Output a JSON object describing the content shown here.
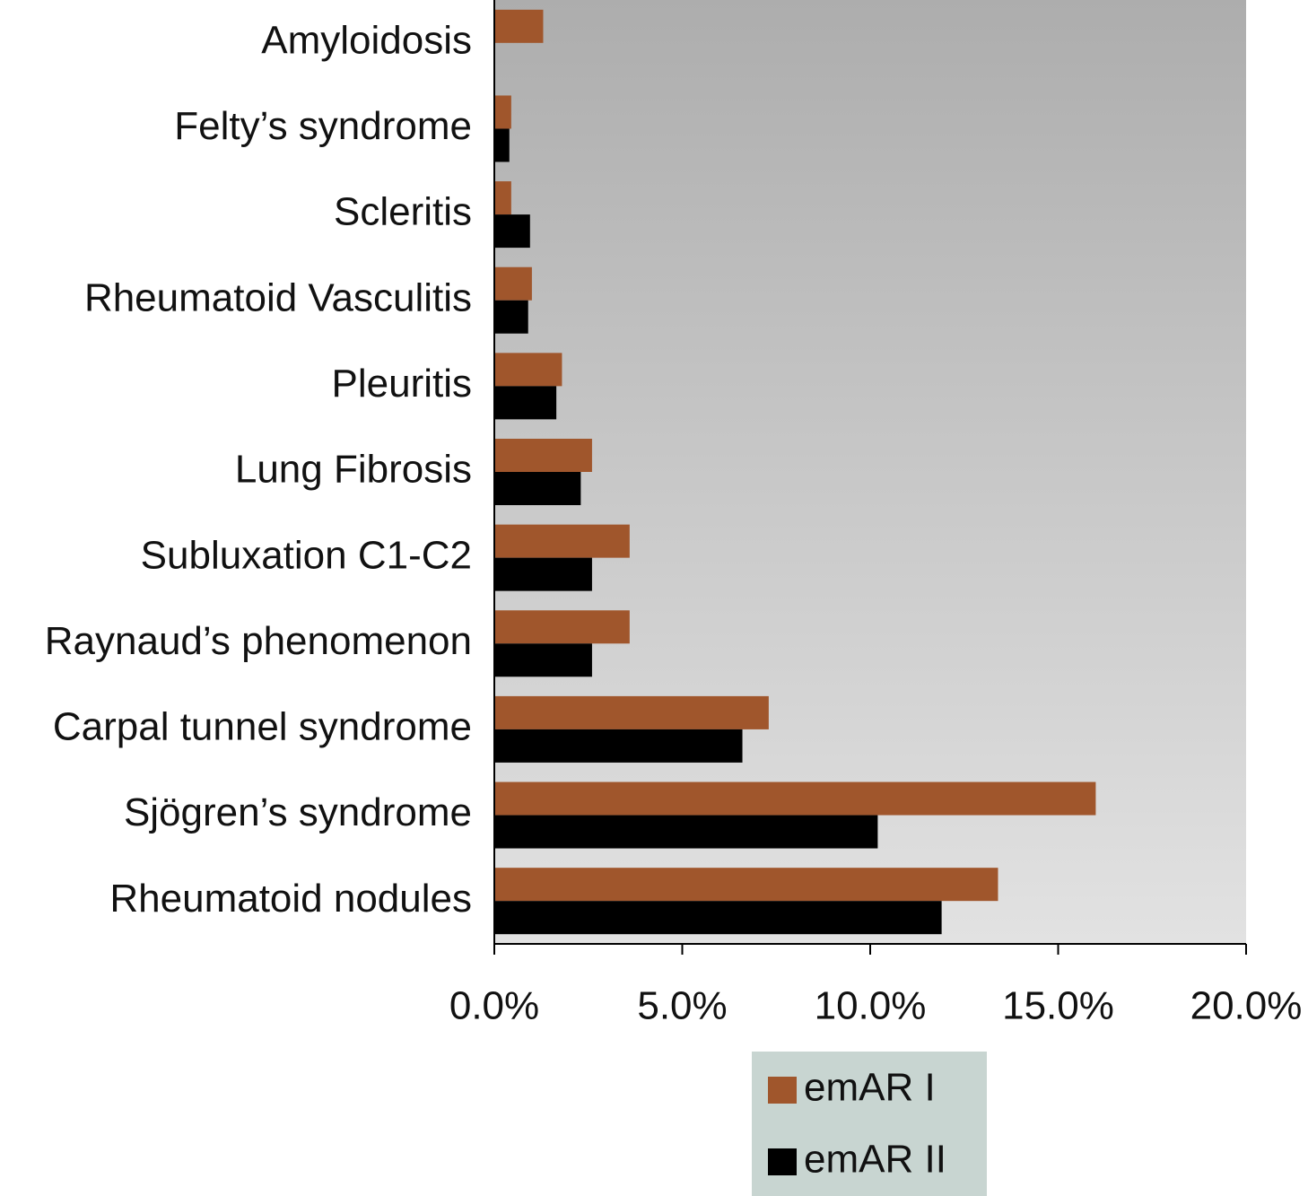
{
  "chart_data": {
    "type": "barh",
    "categories": [
      "Amyloidosis",
      "Felty’s syndrome",
      "Scleritis",
      "Rheumatoid Vasculitis",
      "Pleuritis",
      "Lung Fibrosis",
      "Subluxation C1-C2",
      "Raynaud’s phenomenon",
      "Carpal tunnel syndrome",
      "Sjögren’s syndrome",
      "Rheumatoid nodules"
    ],
    "series": [
      {
        "name": "emAR I",
        "color": "#a0562c",
        "values": [
          1.3,
          0.45,
          0.45,
          1.0,
          1.8,
          2.6,
          3.6,
          3.6,
          7.3,
          16.0,
          13.4
        ]
      },
      {
        "name": "emAR II",
        "color": "#000000",
        "values": [
          0,
          0.4,
          0.95,
          0.9,
          1.65,
          2.3,
          2.6,
          2.6,
          6.6,
          10.2,
          11.9
        ]
      }
    ],
    "xlim": [
      0,
      20
    ],
    "xticks": [
      {
        "value": 0,
        "label": "0.0%"
      },
      {
        "value": 5,
        "label": "5.0%"
      },
      {
        "value": 10,
        "label": "10.0%"
      },
      {
        "value": 15,
        "label": "15.0%"
      },
      {
        "value": 20,
        "label": "20.0%"
      }
    ]
  }
}
